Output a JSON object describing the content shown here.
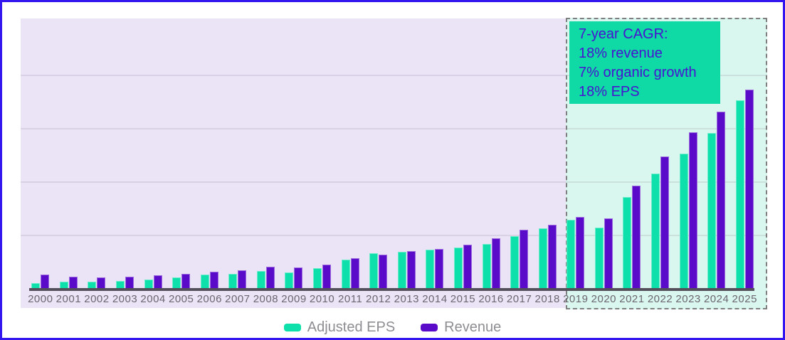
{
  "chart": {
    "annotation": {
      "lines": [
        "7-year CAGR:",
        "18% revenue",
        "7% organic growth",
        "18% EPS"
      ]
    }
  },
  "chart_data": {
    "type": "bar",
    "categories": [
      "2000",
      "2001",
      "2002",
      "2003",
      "2004",
      "2005",
      "2006",
      "2007",
      "2008",
      "2009",
      "2010",
      "2011",
      "2012",
      "2013",
      "2014",
      "2015",
      "2016",
      "2017",
      "2018",
      "2019",
      "2020",
      "2021",
      "2022",
      "2023",
      "2024",
      "2025"
    ],
    "series": [
      {
        "name": "Adjusted EPS",
        "color": "#0de0aa",
        "values": [
          7,
          9,
          9,
          10,
          12,
          15,
          19,
          20,
          24,
          22,
          28,
          40,
          49,
          51,
          54,
          57,
          62,
          73,
          84,
          96,
          85,
          128,
          161,
          189,
          218,
          264
        ]
      },
      {
        "name": "Revenue",
        "color": "#5a0bc9",
        "values": [
          19,
          16,
          15,
          16,
          18,
          20,
          23,
          25,
          30,
          29,
          33,
          42,
          47,
          52,
          55,
          61,
          70,
          82,
          89,
          100,
          98,
          144,
          185,
          219,
          248,
          279
        ]
      }
    ],
    "title": "",
    "xlabel": "",
    "ylabel": "",
    "ylim": [
      0,
      380
    ],
    "y_axis_labels_shown": false,
    "gridline_values": [
      75,
      150,
      225,
      300
    ],
    "grid": true,
    "legend_position": "bottom",
    "highlight_region": {
      "from": "2019",
      "to": "2025",
      "note": "7-year CAGR: 18% revenue, 7% organic growth, 18% EPS"
    }
  },
  "colors": {
    "frame_border": "#3315f0",
    "plot_background": "#ebe4f6",
    "highlight_background": "#d9f7ee",
    "highlight_border": "#7f7f7f",
    "annotation_background": "#0fd9a4",
    "annotation_text": "#4713d1",
    "eps_bar": "#0de0aa",
    "revenue_bar": "#5a0bc9",
    "axis_line": "#54505b",
    "year_label_text": "#6b6670",
    "legend_text": "#8d8d92"
  }
}
